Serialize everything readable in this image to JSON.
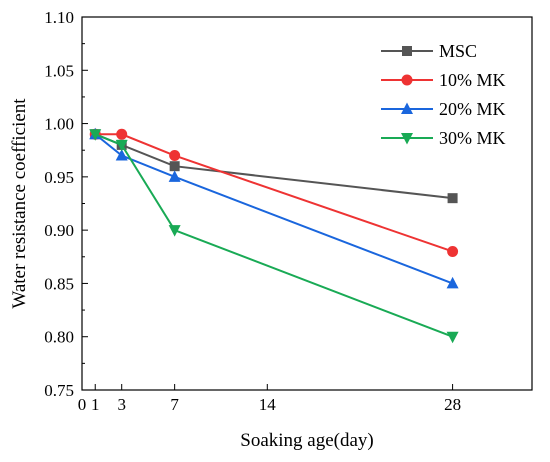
{
  "chart_data": {
    "type": "line",
    "xlabel": "Soaking age(day)",
    "ylabel": "Water resistance coefficient",
    "xlim": [
      0,
      34
    ],
    "ylim": [
      0.75,
      1.1
    ],
    "x_ticks": [
      0,
      1,
      3,
      7,
      14,
      28
    ],
    "x_tick_labels": [
      "0",
      "1",
      "3",
      "7",
      "14",
      "28"
    ],
    "y_ticks": [
      0.75,
      0.8,
      0.85,
      0.9,
      0.95,
      1.0,
      1.05,
      1.1
    ],
    "y_tick_labels": [
      "0.75",
      "0.80",
      "0.85",
      "0.90",
      "0.95",
      "1.00",
      "1.05",
      "1.10"
    ],
    "grid": false,
    "legend_position": "top-right",
    "series": [
      {
        "name": "MSC",
        "color": "#555555",
        "marker": "square",
        "x": [
          1,
          3,
          7,
          28
        ],
        "values": [
          0.99,
          0.98,
          0.96,
          0.93
        ]
      },
      {
        "name": "10% MK",
        "color": "#ee3333",
        "marker": "circle",
        "x": [
          1,
          3,
          7,
          28
        ],
        "values": [
          0.99,
          0.99,
          0.97,
          0.88
        ]
      },
      {
        "name": "20% MK",
        "color": "#1a66dd",
        "marker": "triangle-up",
        "x": [
          1,
          3,
          7,
          28
        ],
        "values": [
          0.99,
          0.97,
          0.95,
          0.85
        ]
      },
      {
        "name": "30% MK",
        "color": "#19aa55",
        "marker": "triangle-down",
        "x": [
          1,
          3,
          7,
          28
        ],
        "values": [
          0.99,
          0.98,
          0.9,
          0.8
        ]
      }
    ]
  }
}
